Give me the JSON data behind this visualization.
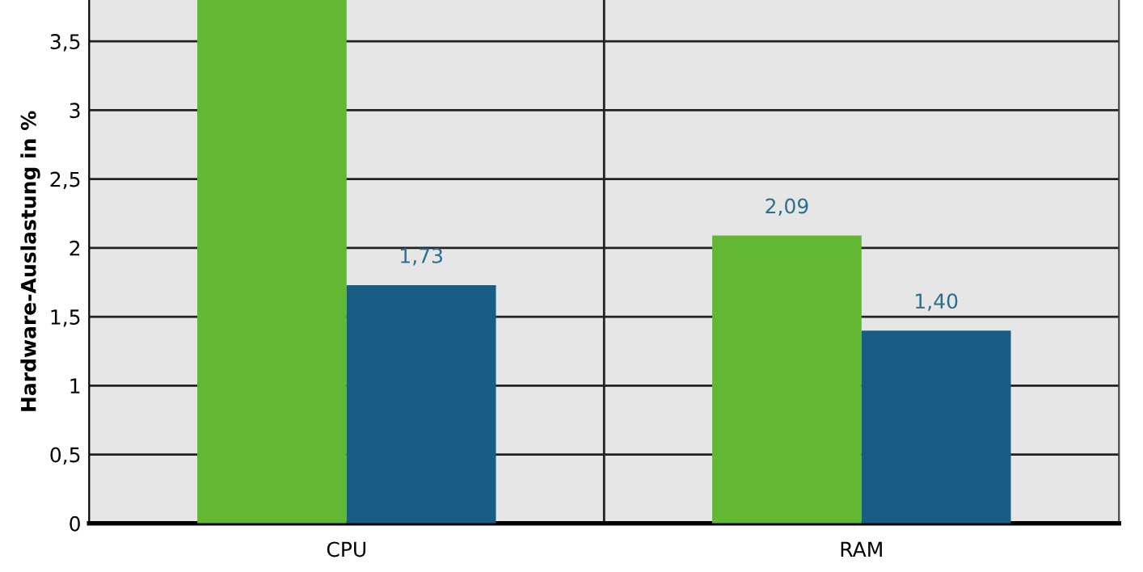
{
  "chart_data": {
    "type": "bar",
    "ylabel": "Hardware-Auslastung in %",
    "categories": [
      "CPU",
      "RAM"
    ],
    "series": [
      {
        "color": "#62b832",
        "values": [
          3.8,
          2.09
        ],
        "value_labels": [
          null,
          "2,09"
        ]
      },
      {
        "color": "#175d85",
        "values": [
          1.73,
          1.4
        ],
        "value_labels": [
          "1,73",
          "1,40"
        ]
      }
    ],
    "ylim": [
      0,
      3.8
    ],
    "yticks": [
      {
        "value": 0,
        "label": "0"
      },
      {
        "value": 0.5,
        "label": "0,5"
      },
      {
        "value": 1,
        "label": "1"
      },
      {
        "value": 1.5,
        "label": "1,5"
      },
      {
        "value": 2,
        "label": "2"
      },
      {
        "value": 2.5,
        "label": "2,5"
      },
      {
        "value": 3,
        "label": "3"
      },
      {
        "value": 3.5,
        "label": "3,5"
      }
    ],
    "grid": true,
    "legend": false
  }
}
